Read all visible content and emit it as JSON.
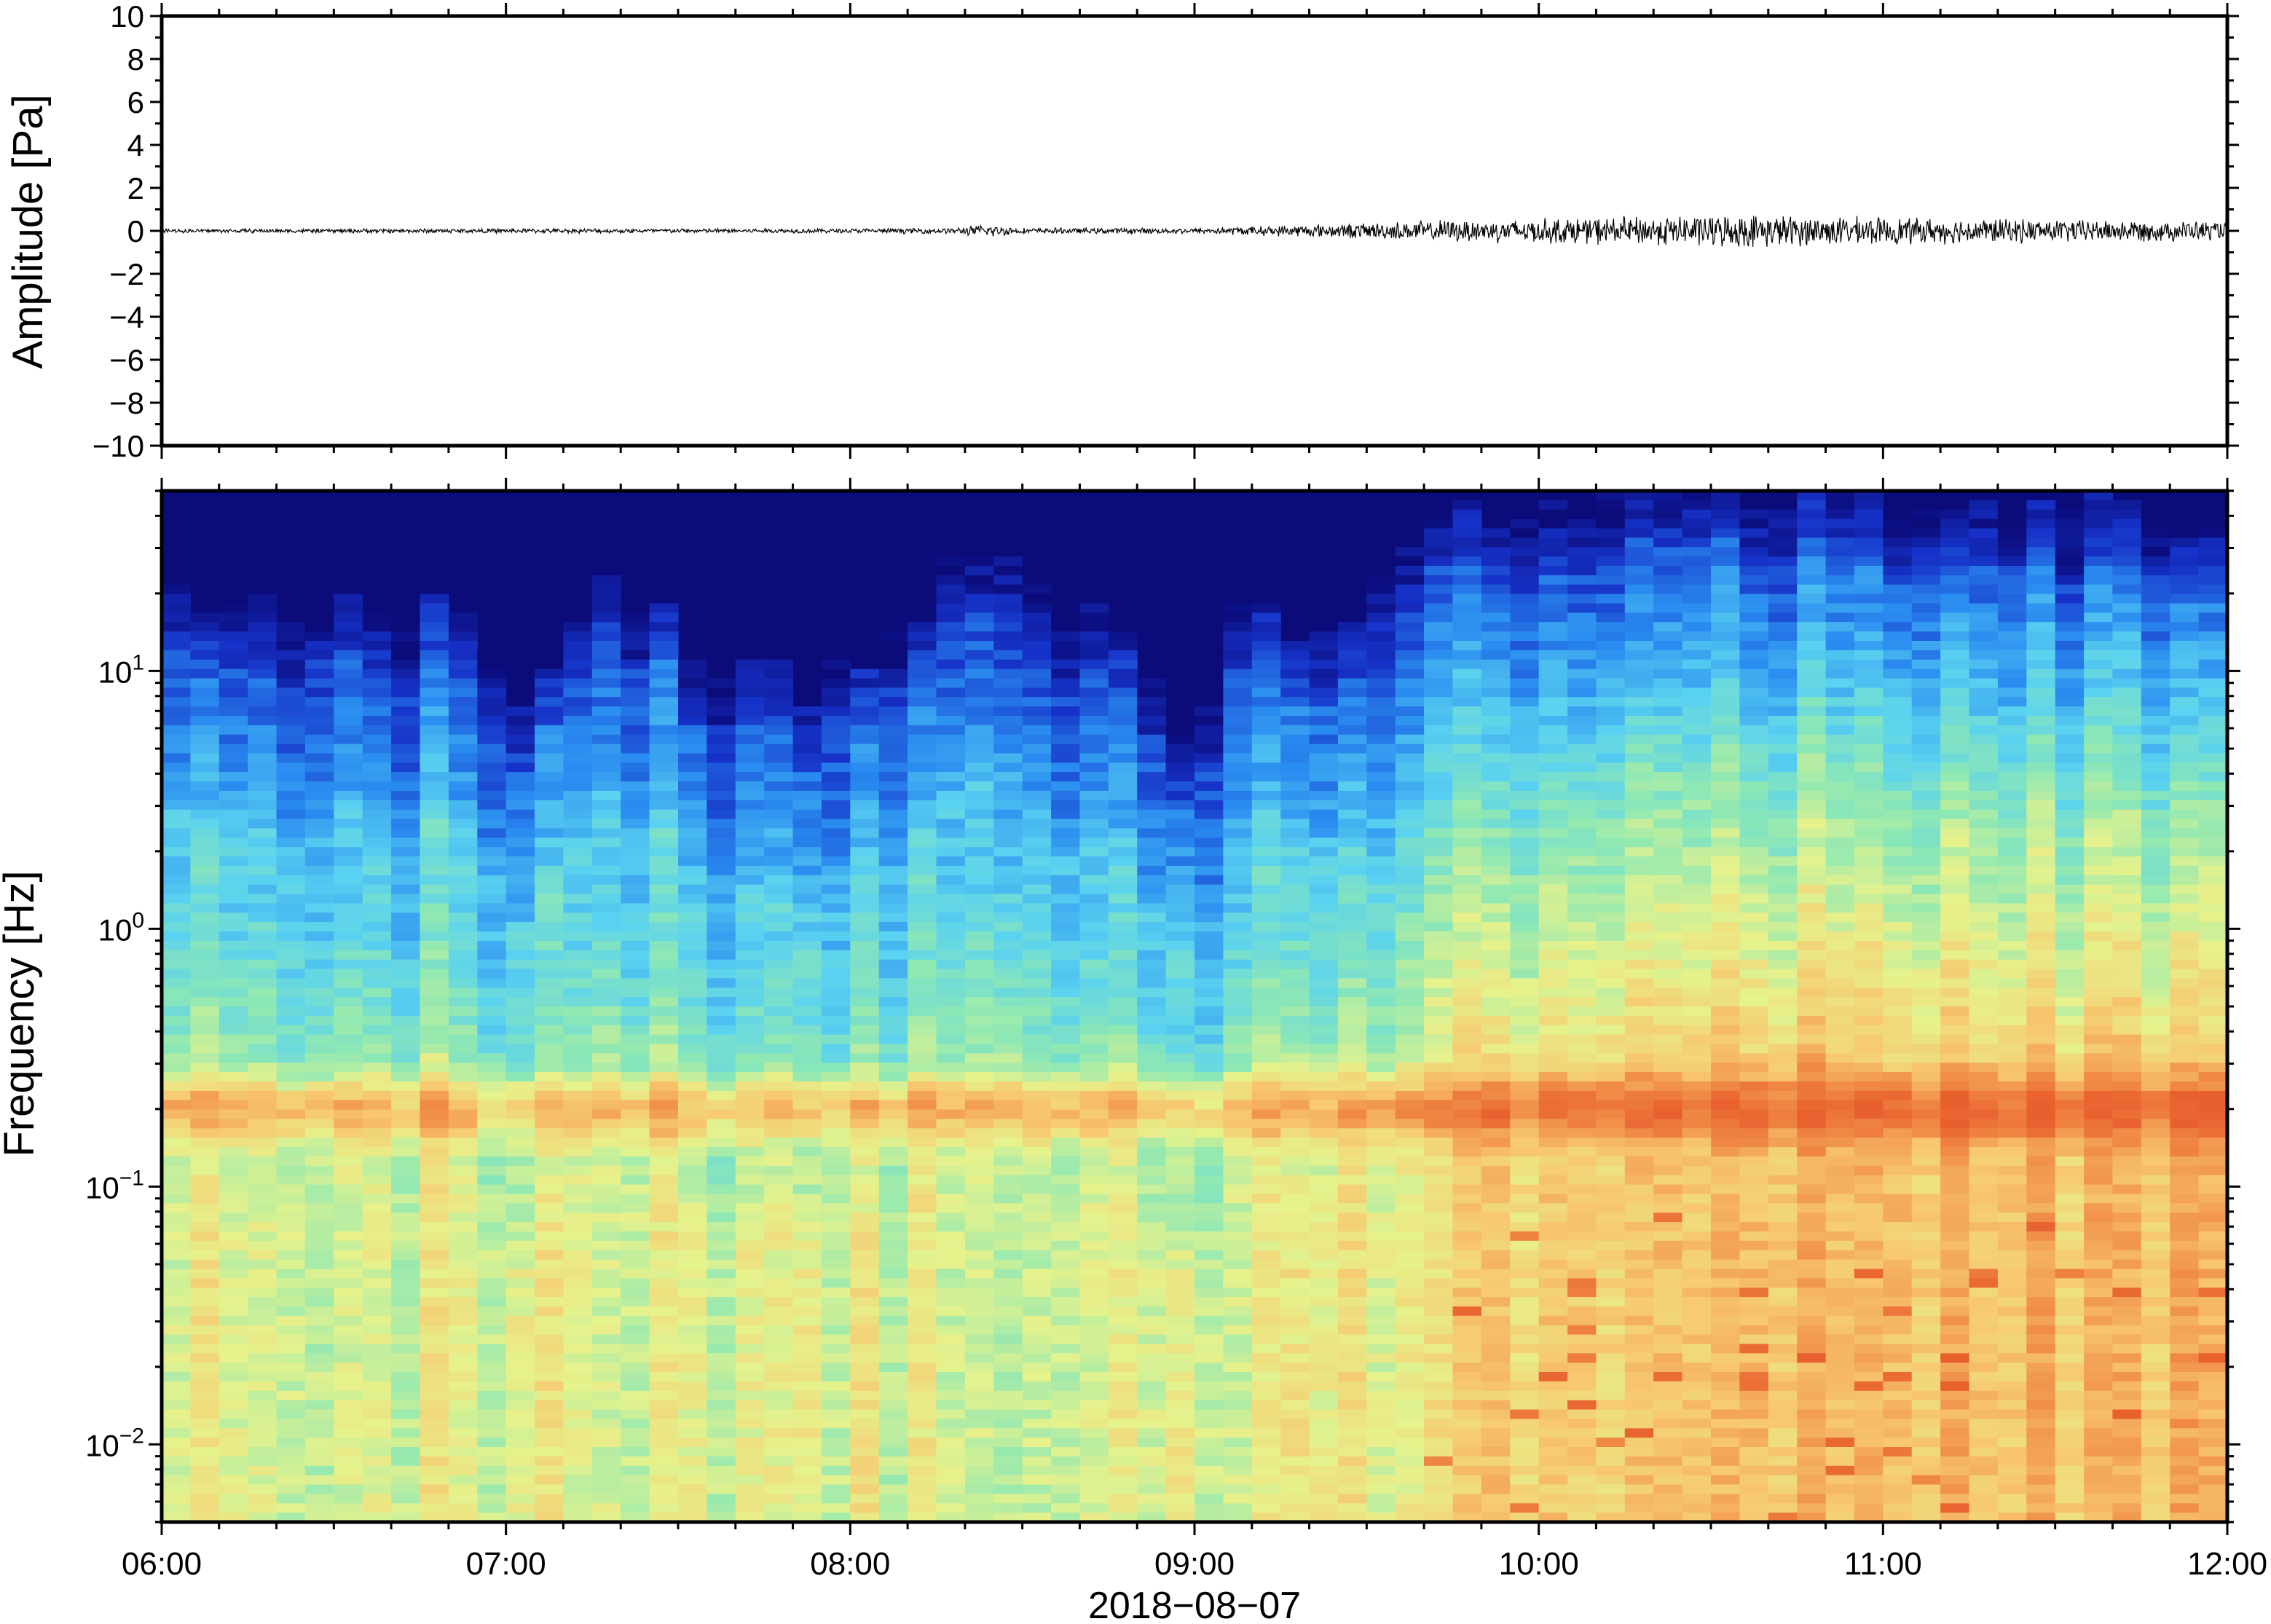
{
  "chart_data": [
    {
      "type": "line",
      "ylabel": "Amplitude [Pa]",
      "ylim": [
        -10,
        10
      ],
      "yticks": [
        10,
        8,
        6,
        4,
        2,
        0,
        -2,
        -4,
        -6,
        -8,
        -10
      ],
      "ytick_labels": [
        "10",
        "8",
        "6",
        "4",
        "2",
        "0",
        "−2",
        "−4",
        "−6",
        "−8",
        "−10"
      ],
      "x_range": [
        "06:00",
        "12:00"
      ],
      "envelope": {
        "x_hours": [
          6.0,
          7.0,
          8.0,
          8.3,
          8.4,
          8.5,
          9.0,
          9.4,
          9.7,
          10.0,
          10.3,
          10.6,
          11.0,
          11.5,
          12.0
        ],
        "amp_pa": [
          0.1,
          0.12,
          0.12,
          0.15,
          0.35,
          0.15,
          0.15,
          0.35,
          0.55,
          0.65,
          0.75,
          0.85,
          0.7,
          0.6,
          0.5
        ]
      },
      "grid": false
    },
    {
      "type": "heatmap",
      "ylabel": "Frequency [Hz]",
      "xlabel": "2018−08−07",
      "yscale": "log",
      "ylim": [
        0.005,
        50
      ],
      "yticks": [
        {
          "base": "10",
          "exp": "1"
        },
        {
          "base": "10",
          "exp": "0"
        },
        {
          "base": "10",
          "exp": "−1"
        },
        {
          "base": "10",
          "exp": "−2"
        }
      ],
      "x_tick_labels": [
        "06:00",
        "07:00",
        "08:00",
        "09:00",
        "10:00",
        "11:00",
        "12:00"
      ],
      "x_hours": [
        6,
        7,
        8,
        9,
        10,
        11,
        12
      ],
      "colormap": [
        "#0b0b7a",
        "#1632c8",
        "#2a8cf0",
        "#5ad2f0",
        "#8ee8b4",
        "#e6f28c",
        "#f7c870",
        "#f08a46",
        "#e8602e"
      ],
      "cutoff_freq_hz": {
        "x_hours": [
          6.0,
          6.3,
          6.6,
          6.9,
          7.1,
          7.3,
          7.6,
          7.9,
          8.2,
          8.4,
          8.7,
          9.0,
          9.2,
          9.4,
          9.7,
          10.0,
          10.5,
          11.0,
          11.5,
          12.0
        ],
        "hz": [
          12,
          10,
          12,
          8,
          4,
          14,
          6,
          5,
          9,
          18,
          9,
          3,
          12,
          6,
          22,
          24,
          30,
          25,
          24,
          22
        ]
      },
      "grid": false
    }
  ]
}
